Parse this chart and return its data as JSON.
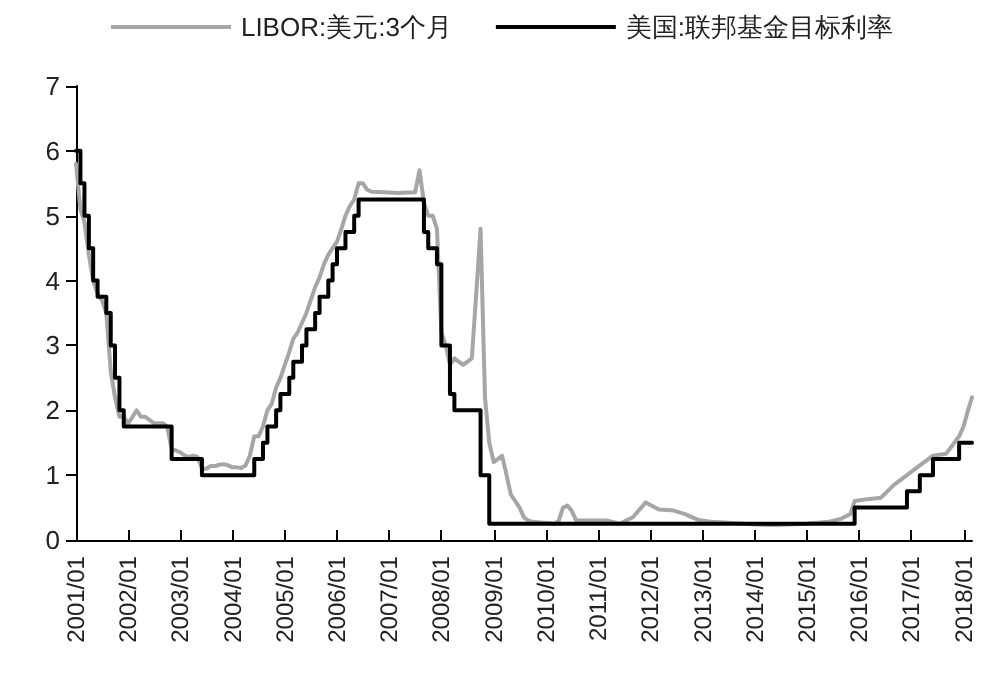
{
  "chart_data": {
    "type": "line",
    "legend": "top",
    "grid": false,
    "marker": "none",
    "line_style": "solid",
    "xlim": [
      "2001-01",
      "2018-03"
    ],
    "xticks": [
      {
        "value": "2001-01",
        "label": "2001/01"
      },
      {
        "value": "2002-01",
        "label": "2002/01"
      },
      {
        "value": "2003-01",
        "label": "2003/01"
      },
      {
        "value": "2004-01",
        "label": "2004/01"
      },
      {
        "value": "2005-01",
        "label": "2005/01"
      },
      {
        "value": "2006-01",
        "label": "2006/01"
      },
      {
        "value": "2007-01",
        "label": "2007/01"
      },
      {
        "value": "2008-01",
        "label": "2008/01"
      },
      {
        "value": "2009-01",
        "label": "2009/01"
      },
      {
        "value": "2010-01",
        "label": "2010/01"
      },
      {
        "value": "2011-01",
        "label": "2011/01"
      },
      {
        "value": "2012-01",
        "label": "2012/01"
      },
      {
        "value": "2013-01",
        "label": "2013/01"
      },
      {
        "value": "2014-01",
        "label": "2014/01"
      },
      {
        "value": "2015-01",
        "label": "2015/01"
      },
      {
        "value": "2016-01",
        "label": "2016/01"
      },
      {
        "value": "2017-01",
        "label": "2017/01"
      },
      {
        "value": "2018-01",
        "label": "2018/01"
      }
    ],
    "ylim": [
      0,
      7
    ],
    "yticks": [
      0,
      1,
      2,
      3,
      4,
      5,
      6,
      7
    ],
    "series": [
      {
        "name": "LIBOR:美元:3个月",
        "color": "#a6a6a6",
        "x": [
          "2001-01",
          "2001-02",
          "2001-03",
          "2001-04",
          "2001-05",
          "2001-06",
          "2001-07",
          "2001-08",
          "2001-09",
          "2001-10",
          "2001-11",
          "2001-12",
          "2002-01",
          "2002-02",
          "2002-03",
          "2002-04",
          "2002-05",
          "2002-06",
          "2002-07",
          "2002-08",
          "2002-09",
          "2002-10",
          "2002-11",
          "2002-12",
          "2003-01",
          "2003-02",
          "2003-03",
          "2003-04",
          "2003-05",
          "2003-06",
          "2003-07",
          "2003-08",
          "2003-09",
          "2003-10",
          "2003-11",
          "2003-12",
          "2004-01",
          "2004-02",
          "2004-03",
          "2004-04",
          "2004-05",
          "2004-06",
          "2004-07",
          "2004-08",
          "2004-09",
          "2004-10",
          "2004-11",
          "2004-12",
          "2005-01",
          "2005-02",
          "2005-03",
          "2005-04",
          "2005-05",
          "2005-06",
          "2005-07",
          "2005-08",
          "2005-09",
          "2005-10",
          "2005-11",
          "2005-12",
          "2006-01",
          "2006-02",
          "2006-03",
          "2006-04",
          "2006-05",
          "2006-06",
          "2006-07",
          "2006-08",
          "2006-09",
          "2006-12",
          "2007-03",
          "2007-07",
          "2007-08",
          "2007-09",
          "2007-10",
          "2007-11",
          "2007-12",
          "2008-01",
          "2008-02",
          "2008-03",
          "2008-04",
          "2008-06",
          "2008-08",
          "2008-09",
          "2008-10",
          "2008-11",
          "2008-12",
          "2009-01",
          "2009-02",
          "2009-03",
          "2009-04",
          "2009-05",
          "2009-06",
          "2009-07",
          "2009-08",
          "2009-09",
          "2009-10",
          "2010-03",
          "2010-04",
          "2010-05",
          "2010-06",
          "2010-07",
          "2010-08",
          "2011-03",
          "2011-06",
          "2011-09",
          "2011-12",
          "2012-03",
          "2012-06",
          "2012-09",
          "2012-12",
          "2013-03",
          "2013-06",
          "2014-01",
          "2014-06",
          "2015-01",
          "2015-06",
          "2015-09",
          "2015-11",
          "2015-12",
          "2016-03",
          "2016-06",
          "2016-09",
          "2016-12",
          "2017-03",
          "2017-06",
          "2017-09",
          "2017-12",
          "2018-01",
          "2018-02",
          "2018-03"
        ],
        "values": [
          5.8,
          5.1,
          4.9,
          4.4,
          4.0,
          3.8,
          3.7,
          3.5,
          2.6,
          2.2,
          1.9,
          1.9,
          1.8,
          1.9,
          2.0,
          1.9,
          1.9,
          1.85,
          1.8,
          1.8,
          1.8,
          1.75,
          1.4,
          1.38,
          1.35,
          1.3,
          1.28,
          1.3,
          1.28,
          1.1,
          1.1,
          1.14,
          1.14,
          1.16,
          1.17,
          1.15,
          1.12,
          1.12,
          1.11,
          1.15,
          1.3,
          1.6,
          1.6,
          1.75,
          2.0,
          2.1,
          2.35,
          2.5,
          2.7,
          2.9,
          3.1,
          3.2,
          3.35,
          3.5,
          3.7,
          3.9,
          4.05,
          4.25,
          4.4,
          4.5,
          4.6,
          4.8,
          5.0,
          5.15,
          5.25,
          5.5,
          5.5,
          5.4,
          5.37,
          5.36,
          5.35,
          5.36,
          5.7,
          5.2,
          5.0,
          5.0,
          4.8,
          3.2,
          3.0,
          2.7,
          2.8,
          2.7,
          2.8,
          3.8,
          4.8,
          2.2,
          1.5,
          1.2,
          1.25,
          1.3,
          1.0,
          0.7,
          0.6,
          0.5,
          0.35,
          0.3,
          0.28,
          0.25,
          0.3,
          0.5,
          0.53,
          0.45,
          0.3,
          0.3,
          0.25,
          0.35,
          0.58,
          0.47,
          0.46,
          0.4,
          0.31,
          0.28,
          0.27,
          0.24,
          0.23,
          0.25,
          0.28,
          0.33,
          0.4,
          0.6,
          0.63,
          0.65,
          0.85,
          1.0,
          1.15,
          1.3,
          1.33,
          1.6,
          1.75,
          2.0,
          2.2
        ]
      },
      {
        "name": "美国:联邦基金目标利率",
        "color": "#000000",
        "type": "step",
        "x": [
          "2001-01",
          "2001-02",
          "2001-03",
          "2001-04",
          "2001-05",
          "2001-06",
          "2001-08",
          "2001-09",
          "2001-10",
          "2001-11",
          "2001-12",
          "2002-11",
          "2003-06",
          "2004-06",
          "2004-08",
          "2004-09",
          "2004-11",
          "2004-12",
          "2005-02",
          "2005-03",
          "2005-05",
          "2005-06",
          "2005-08",
          "2005-09",
          "2005-11",
          "2005-12",
          "2006-01",
          "2006-03",
          "2006-05",
          "2006-06",
          "2007-09",
          "2007-10",
          "2007-12",
          "2008-01",
          "2008-03",
          "2008-04",
          "2008-10",
          "2008-12",
          "2015-12",
          "2016-12",
          "2017-03",
          "2017-06",
          "2017-12",
          "2018-03"
        ],
        "values": [
          6.0,
          5.5,
          5.0,
          4.5,
          4.0,
          3.75,
          3.5,
          3.0,
          2.5,
          2.0,
          1.75,
          1.25,
          1.0,
          1.25,
          1.5,
          1.75,
          2.0,
          2.25,
          2.5,
          2.75,
          3.0,
          3.25,
          3.5,
          3.75,
          4.0,
          4.25,
          4.5,
          4.75,
          5.0,
          5.25,
          4.75,
          4.5,
          4.25,
          3.0,
          2.25,
          2.0,
          1.0,
          0.25,
          0.5,
          0.75,
          1.0,
          1.25,
          1.5,
          1.5
        ]
      }
    ]
  }
}
